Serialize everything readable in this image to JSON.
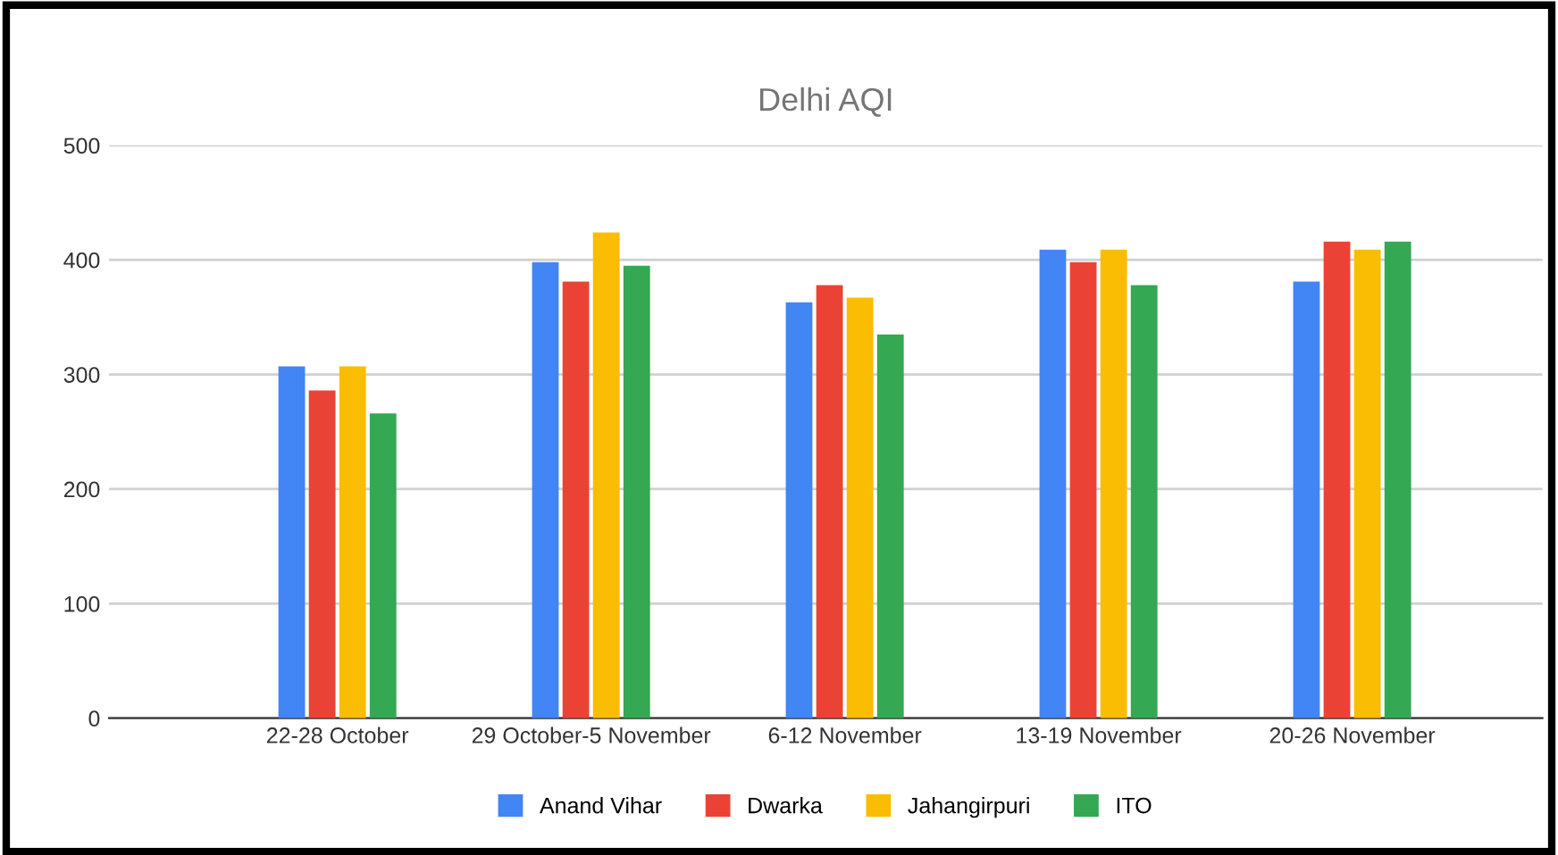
{
  "chart_data": {
    "type": "bar",
    "title": "Delhi AQI",
    "categories": [
      "22-28 October",
      "29 October-5 November",
      "6-12 November",
      "13-19 November",
      "20-26 November"
    ],
    "series": [
      {
        "name": "Anand Vihar",
        "color": "#4285f4",
        "values": [
          307,
          398,
          363,
          409,
          381
        ]
      },
      {
        "name": "Dwarka",
        "color": "#ea4335",
        "values": [
          286,
          381,
          378,
          398,
          416
        ]
      },
      {
        "name": "Jahangirpuri",
        "color": "#fbbc04",
        "values": [
          307,
          424,
          367,
          409,
          409
        ]
      },
      {
        "name": "ITO",
        "color": "#34a853",
        "values": [
          266,
          395,
          335,
          378,
          416
        ]
      }
    ],
    "ylim": [
      0,
      500
    ],
    "yticks": [
      0,
      100,
      200,
      300,
      400,
      500
    ],
    "grid": "y",
    "legend": "bottom"
  }
}
